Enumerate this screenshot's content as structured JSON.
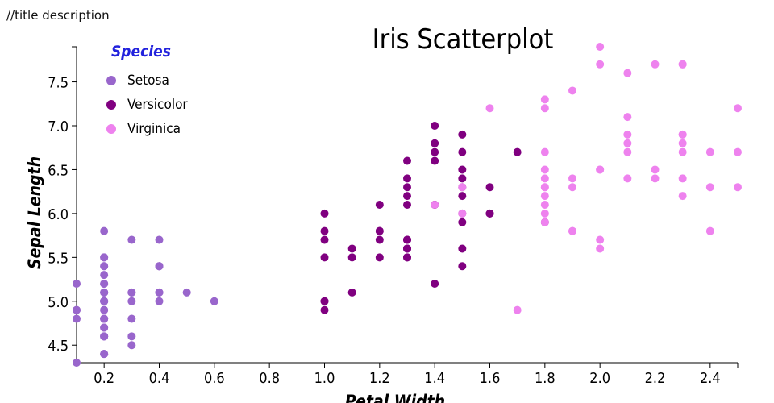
{
  "page_note": "//title description",
  "chart_data": {
    "type": "scatter",
    "title": "Iris Scatterplot",
    "xlabel": "Petal Width",
    "ylabel": "Sepal Length",
    "xlim": [
      0.1,
      2.5
    ],
    "ylim": [
      4.3,
      7.9
    ],
    "x_ticks": [
      "0.2",
      "0.4",
      "0.6",
      "0.8",
      "1.0",
      "1.2",
      "1.4",
      "1.6",
      "1.8",
      "2.0",
      "2.2",
      "2.4"
    ],
    "y_ticks": [
      "4.5",
      "5.0",
      "5.5",
      "6.0",
      "6.5",
      "7.0",
      "7.5"
    ],
    "grid": false,
    "legend": {
      "title": "Species",
      "title_color": "#2222dd",
      "position": "top-left"
    },
    "series": [
      {
        "name": "Setosa",
        "color": "#9966cc",
        "points": [
          [
            0.2,
            5.1
          ],
          [
            0.2,
            4.9
          ],
          [
            0.2,
            4.7
          ],
          [
            0.2,
            4.6
          ],
          [
            0.2,
            5.0
          ],
          [
            0.4,
            5.4
          ],
          [
            0.3,
            4.6
          ],
          [
            0.2,
            5.0
          ],
          [
            0.2,
            4.4
          ],
          [
            0.1,
            4.9
          ],
          [
            0.2,
            5.4
          ],
          [
            0.2,
            4.8
          ],
          [
            0.1,
            4.8
          ],
          [
            0.1,
            4.3
          ],
          [
            0.2,
            5.8
          ],
          [
            0.4,
            5.7
          ],
          [
            0.4,
            5.4
          ],
          [
            0.3,
            5.1
          ],
          [
            0.3,
            5.7
          ],
          [
            0.3,
            5.1
          ],
          [
            0.2,
            5.4
          ],
          [
            0.4,
            5.1
          ],
          [
            0.2,
            4.6
          ],
          [
            0.5,
            5.1
          ],
          [
            0.2,
            4.8
          ],
          [
            0.2,
            5.0
          ],
          [
            0.4,
            5.0
          ],
          [
            0.2,
            5.2
          ],
          [
            0.2,
            5.2
          ],
          [
            0.2,
            4.7
          ],
          [
            0.2,
            4.8
          ],
          [
            0.4,
            5.4
          ],
          [
            0.1,
            5.2
          ],
          [
            0.2,
            5.5
          ],
          [
            0.2,
            4.9
          ],
          [
            0.2,
            5.0
          ],
          [
            0.2,
            5.5
          ],
          [
            0.1,
            4.9
          ],
          [
            0.2,
            4.4
          ],
          [
            0.2,
            5.1
          ],
          [
            0.3,
            5.0
          ],
          [
            0.3,
            4.5
          ],
          [
            0.2,
            4.4
          ],
          [
            0.6,
            5.0
          ],
          [
            0.4,
            5.1
          ],
          [
            0.3,
            4.8
          ],
          [
            0.2,
            5.1
          ],
          [
            0.2,
            4.6
          ],
          [
            0.2,
            5.3
          ],
          [
            0.2,
            5.0
          ]
        ]
      },
      {
        "name": "Versicolor",
        "color": "#800080",
        "points": [
          [
            1.4,
            7.0
          ],
          [
            1.5,
            6.4
          ],
          [
            1.5,
            6.9
          ],
          [
            1.3,
            5.5
          ],
          [
            1.5,
            6.5
          ],
          [
            1.3,
            5.7
          ],
          [
            1.6,
            6.3
          ],
          [
            1.0,
            4.9
          ],
          [
            1.3,
            6.6
          ],
          [
            1.4,
            5.2
          ],
          [
            1.0,
            5.0
          ],
          [
            1.5,
            5.9
          ],
          [
            1.0,
            6.0
          ],
          [
            1.4,
            6.1
          ],
          [
            1.3,
            5.6
          ],
          [
            1.4,
            6.7
          ],
          [
            1.5,
            5.6
          ],
          [
            1.0,
            5.8
          ],
          [
            1.5,
            6.2
          ],
          [
            1.1,
            5.6
          ],
          [
            1.8,
            5.9
          ],
          [
            1.3,
            6.1
          ],
          [
            1.5,
            6.3
          ],
          [
            1.2,
            6.1
          ],
          [
            1.3,
            6.4
          ],
          [
            1.4,
            6.6
          ],
          [
            1.4,
            6.8
          ],
          [
            1.7,
            6.7
          ],
          [
            1.5,
            6.0
          ],
          [
            1.0,
            5.7
          ],
          [
            1.1,
            5.5
          ],
          [
            1.0,
            5.5
          ],
          [
            1.2,
            5.8
          ],
          [
            1.6,
            6.0
          ],
          [
            1.5,
            5.4
          ],
          [
            1.6,
            6.0
          ],
          [
            1.5,
            6.7
          ],
          [
            1.3,
            6.3
          ],
          [
            1.3,
            5.6
          ],
          [
            1.3,
            5.5
          ],
          [
            1.2,
            5.5
          ],
          [
            1.4,
            6.1
          ],
          [
            1.2,
            5.8
          ],
          [
            1.0,
            5.0
          ],
          [
            1.3,
            5.6
          ],
          [
            1.2,
            5.7
          ],
          [
            1.3,
            5.7
          ],
          [
            1.3,
            6.2
          ],
          [
            1.1,
            5.1
          ],
          [
            1.3,
            5.7
          ]
        ]
      },
      {
        "name": "Virginica",
        "color": "#ee82ee",
        "points": [
          [
            2.5,
            6.3
          ],
          [
            1.9,
            5.8
          ],
          [
            2.1,
            7.1
          ],
          [
            1.8,
            6.3
          ],
          [
            2.2,
            6.5
          ],
          [
            2.1,
            7.6
          ],
          [
            1.7,
            4.9
          ],
          [
            1.8,
            7.3
          ],
          [
            1.8,
            6.7
          ],
          [
            2.5,
            7.2
          ],
          [
            2.0,
            6.5
          ],
          [
            1.9,
            6.4
          ],
          [
            2.1,
            6.8
          ],
          [
            2.0,
            5.7
          ],
          [
            2.4,
            5.8
          ],
          [
            2.3,
            6.4
          ],
          [
            1.8,
            6.5
          ],
          [
            2.2,
            7.7
          ],
          [
            2.3,
            7.7
          ],
          [
            1.5,
            6.0
          ],
          [
            2.3,
            6.9
          ],
          [
            2.0,
            5.6
          ],
          [
            2.0,
            7.7
          ],
          [
            1.8,
            6.3
          ],
          [
            2.1,
            6.7
          ],
          [
            1.8,
            7.2
          ],
          [
            1.8,
            6.2
          ],
          [
            1.8,
            6.1
          ],
          [
            2.1,
            6.4
          ],
          [
            1.6,
            7.2
          ],
          [
            1.9,
            7.4
          ],
          [
            2.0,
            7.9
          ],
          [
            2.2,
            6.4
          ],
          [
            1.5,
            6.3
          ],
          [
            1.4,
            6.1
          ],
          [
            2.3,
            7.7
          ],
          [
            2.4,
            6.3
          ],
          [
            1.8,
            6.4
          ],
          [
            1.8,
            6.0
          ],
          [
            2.1,
            6.9
          ],
          [
            2.4,
            6.7
          ],
          [
            2.3,
            6.9
          ],
          [
            1.9,
            5.8
          ],
          [
            2.3,
            6.8
          ],
          [
            2.5,
            6.7
          ],
          [
            2.3,
            6.7
          ],
          [
            1.9,
            6.3
          ],
          [
            2.0,
            6.5
          ],
          [
            2.3,
            6.2
          ],
          [
            1.8,
            5.9
          ]
        ]
      }
    ]
  }
}
